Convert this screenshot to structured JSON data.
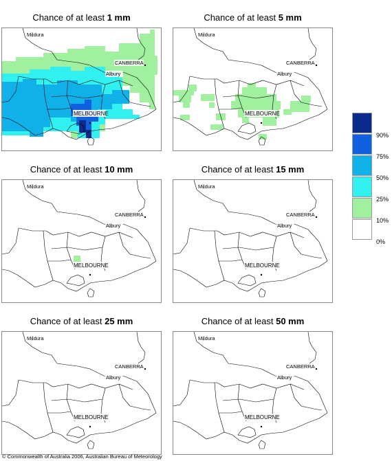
{
  "panels": [
    {
      "prefix": "Chance of at least ",
      "amount": "1 mm"
    },
    {
      "prefix": "Chance of at least ",
      "amount": "5 mm"
    },
    {
      "prefix": "Chance of at least ",
      "amount": "10 mm"
    },
    {
      "prefix": "Chance of at least ",
      "amount": "15 mm"
    },
    {
      "prefix": "Chance of at least ",
      "amount": "25 mm"
    },
    {
      "prefix": "Chance of at least ",
      "amount": "50 mm"
    }
  ],
  "cities": {
    "mildura": "Mildura",
    "canberra": "CANBERRA",
    "albury": "Albury",
    "melbourne": "MELBOURNE"
  },
  "legend": {
    "labels": [
      "90%",
      "75%",
      "50%",
      "25%",
      "10%",
      "0%"
    ],
    "colors": [
      "#0a2a8c",
      "#1060e0",
      "#10b0e8",
      "#30f0f0",
      "#a0f0a0",
      "#ffffff"
    ]
  },
  "credit": "© Commonwealth of Australia 2006, Australian Bureau of Meteorology"
}
